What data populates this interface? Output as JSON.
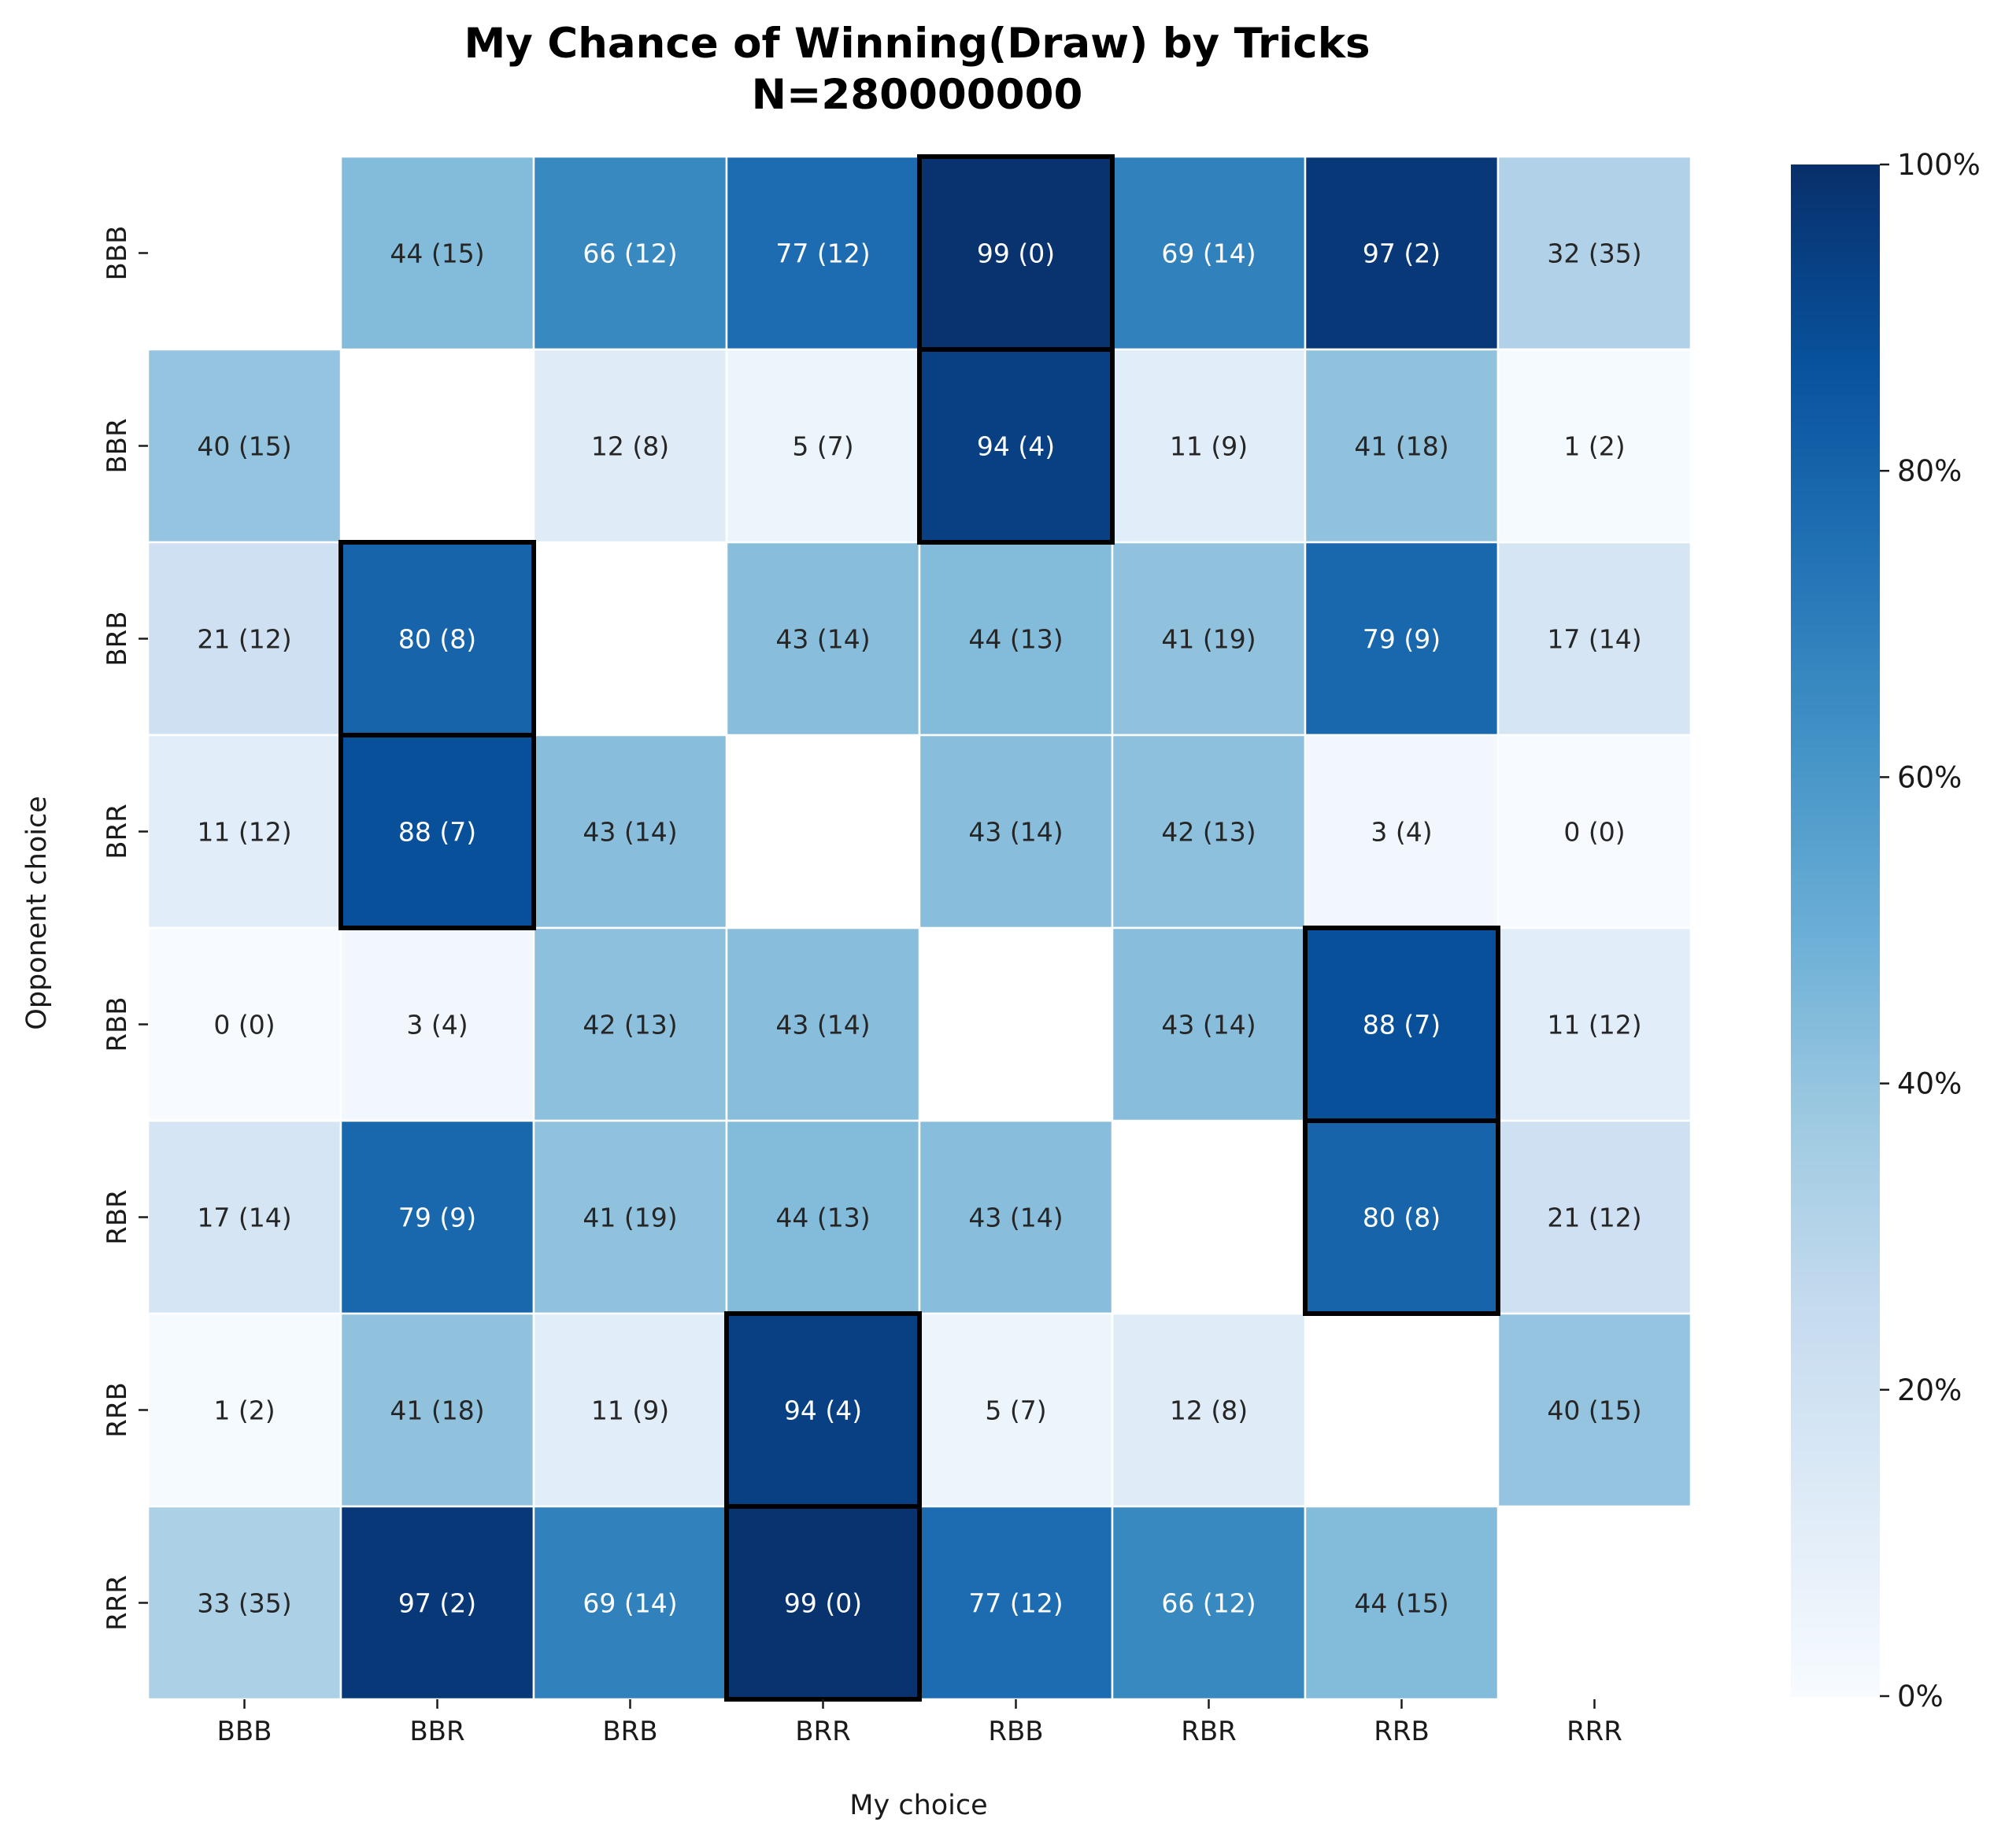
{
  "chart_data": {
    "type": "heatmap",
    "title": "My Chance of Winning(Draw) by Tricks",
    "subtitle": "N=280000000",
    "xlabel": "My choice",
    "ylabel": "Opponent choice",
    "x_categories": [
      "BBB",
      "BBR",
      "BRB",
      "BRR",
      "RBB",
      "RBR",
      "RRB",
      "RRR"
    ],
    "y_categories": [
      "BBB",
      "BBR",
      "BRB",
      "BRR",
      "RBB",
      "RBR",
      "RRB",
      "RRR"
    ],
    "win": [
      [
        null,
        44,
        66,
        77,
        99,
        69,
        97,
        32
      ],
      [
        40,
        null,
        12,
        5,
        94,
        11,
        41,
        1
      ],
      [
        21,
        80,
        null,
        43,
        44,
        41,
        79,
        17
      ],
      [
        11,
        88,
        43,
        null,
        43,
        42,
        3,
        0
      ],
      [
        0,
        3,
        42,
        43,
        null,
        43,
        88,
        11
      ],
      [
        17,
        79,
        41,
        44,
        43,
        null,
        80,
        21
      ],
      [
        1,
        41,
        11,
        94,
        5,
        12,
        null,
        40
      ],
      [
        33,
        97,
        69,
        99,
        77,
        66,
        44,
        null
      ]
    ],
    "draw": [
      [
        null,
        15,
        12,
        12,
        0,
        14,
        2,
        35
      ],
      [
        15,
        null,
        8,
        7,
        4,
        9,
        18,
        2
      ],
      [
        12,
        8,
        null,
        14,
        13,
        19,
        9,
        14
      ],
      [
        12,
        7,
        14,
        null,
        14,
        13,
        4,
        0
      ],
      [
        0,
        4,
        13,
        14,
        null,
        14,
        7,
        12
      ],
      [
        14,
        9,
        19,
        13,
        14,
        null,
        8,
        12
      ],
      [
        2,
        18,
        9,
        4,
        7,
        8,
        null,
        15
      ],
      [
        35,
        2,
        14,
        0,
        12,
        12,
        15,
        null
      ]
    ],
    "highlighted_cells": [
      {
        "opponent": "BBB",
        "my": "RBB"
      },
      {
        "opponent": "BBR",
        "my": "RBB"
      },
      {
        "opponent": "BRB",
        "my": "BBR"
      },
      {
        "opponent": "BRR",
        "my": "BBR"
      },
      {
        "opponent": "RBB",
        "my": "RRB"
      },
      {
        "opponent": "RBR",
        "my": "RRB"
      },
      {
        "opponent": "RRB",
        "my": "BRR"
      },
      {
        "opponent": "RRR",
        "my": "BRR"
      }
    ],
    "colorbar": {
      "colormap": "Blues",
      "range": [
        0,
        100
      ],
      "ticks": [
        "0%",
        "20%",
        "40%",
        "60%",
        "80%",
        "100%"
      ]
    },
    "colors": {
      "cell_border": "#ffffff",
      "highlight_border": "#000000",
      "dark_text": "#262626",
      "light_text": "#ffffff"
    }
  }
}
